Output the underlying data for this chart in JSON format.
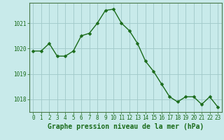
{
  "x": [
    0,
    1,
    2,
    3,
    4,
    5,
    6,
    7,
    8,
    9,
    10,
    11,
    12,
    13,
    14,
    15,
    16,
    17,
    18,
    19,
    20,
    21,
    22,
    23
  ],
  "y": [
    1019.9,
    1019.9,
    1020.2,
    1019.7,
    1019.7,
    1019.9,
    1020.5,
    1020.6,
    1021.0,
    1021.5,
    1021.55,
    1021.0,
    1020.7,
    1020.2,
    1019.5,
    1019.1,
    1018.6,
    1018.1,
    1017.9,
    1018.1,
    1018.1,
    1017.8,
    1018.1,
    1017.7
  ],
  "line_color": "#1a6b1a",
  "marker_color": "#1a6b1a",
  "bg_color": "#c8eaea",
  "grid_color": "#a0c8c8",
  "xlabel": "Graphe pression niveau de la mer (hPa)",
  "ylim": [
    1017.5,
    1021.8
  ],
  "yticks": [
    1018,
    1019,
    1020,
    1021
  ],
  "xtick_labels": [
    "0",
    "1",
    "2",
    "3",
    "4",
    "5",
    "6",
    "7",
    "8",
    "9",
    "10",
    "11",
    "12",
    "13",
    "14",
    "15",
    "16",
    "17",
    "18",
    "19",
    "20",
    "21",
    "22",
    "23"
  ],
  "title_fontsize": 7.0,
  "tick_fontsize": 5.5,
  "line_width": 1.0,
  "marker_size": 2.5
}
